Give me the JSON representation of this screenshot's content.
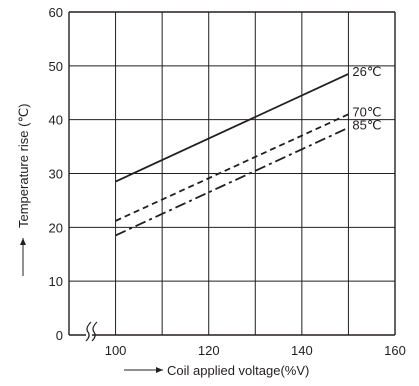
{
  "chart_data": {
    "type": "line",
    "xlabel": "Coil applied voltage(%V)",
    "ylabel": "Temperature rise (℃)",
    "xlim": [
      90,
      160
    ],
    "ylim": [
      0,
      60
    ],
    "x_axis_break": true,
    "xticks": [
      100,
      120,
      140,
      160
    ],
    "yticks": [
      0,
      10,
      20,
      30,
      40,
      50,
      60
    ],
    "x_gridlines": [
      100,
      110,
      120,
      130,
      140,
      150
    ],
    "y_gridlines": [
      10,
      20,
      30,
      40,
      50
    ],
    "grid": true,
    "series": [
      {
        "name": "26℃",
        "style": "solid",
        "x": [
          100,
          150
        ],
        "y": [
          28.5,
          48.5
        ]
      },
      {
        "name": "70℃",
        "style": "dashed",
        "x": [
          100,
          150
        ],
        "y": [
          21.2,
          41.0
        ]
      },
      {
        "name": "85℃",
        "style": "dashdot",
        "x": [
          100,
          150
        ],
        "y": [
          18.5,
          38.5
        ]
      }
    ],
    "line_color": "#231f20"
  }
}
